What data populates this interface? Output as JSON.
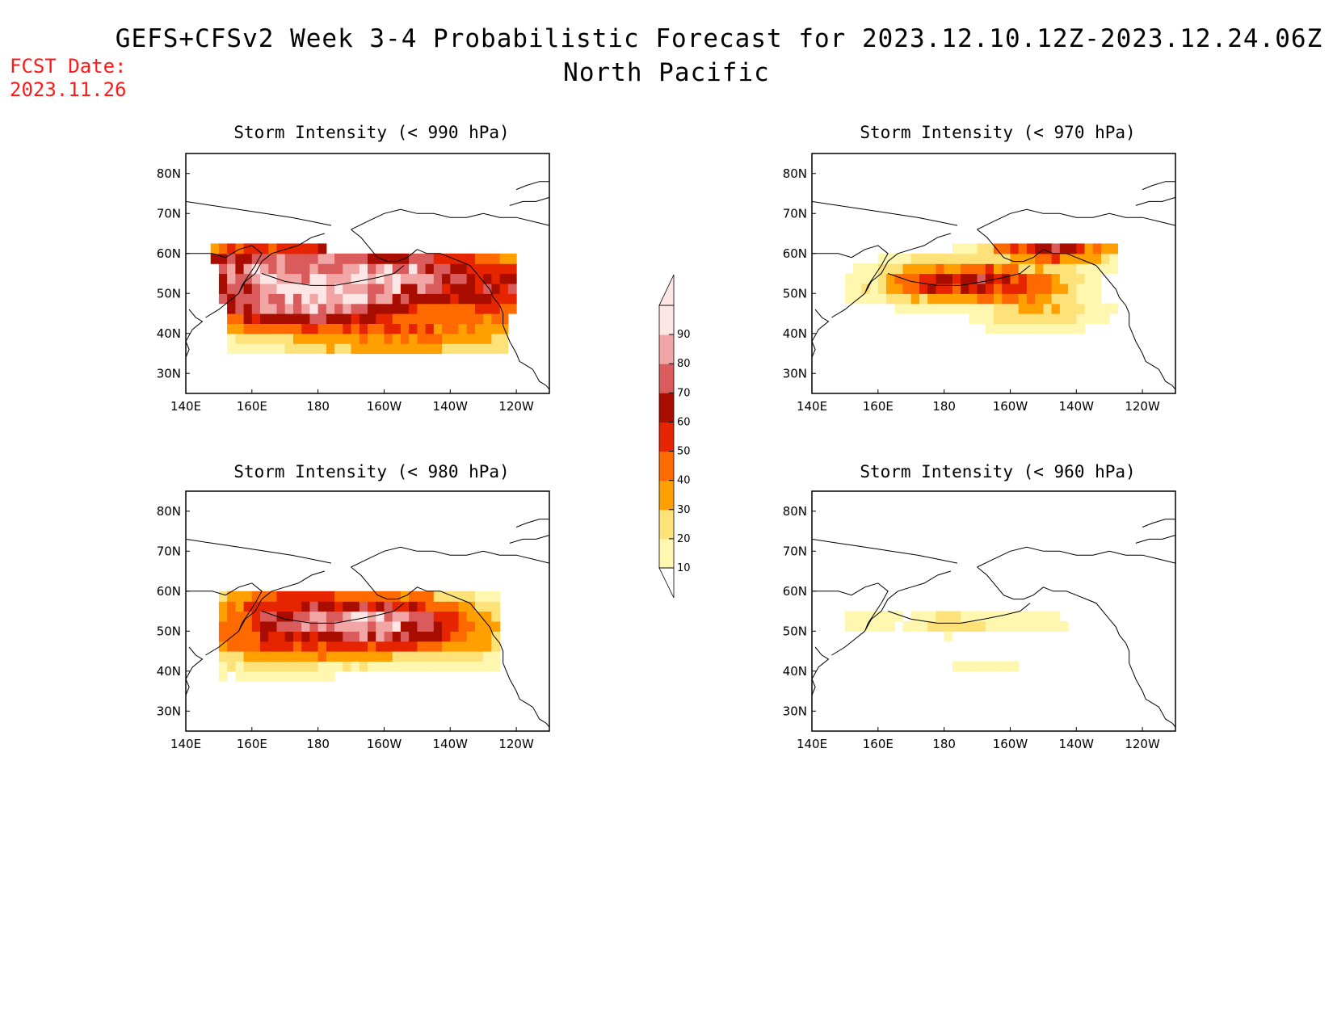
{
  "header": {
    "title_line1": "GEFS+CFSv2 Week 3-4 Probabilistic Forecast for 2023.12.10.12Z-2023.12.24.06Z",
    "title_line2": "North Pacific",
    "fcst_label": "FCST Date:",
    "fcst_date": "2023.11.26"
  },
  "axes": {
    "lon_ticks": [
      "140E",
      "160E",
      "180",
      "160W",
      "140W",
      "120W"
    ],
    "lat_ticks": [
      "80N",
      "70N",
      "60N",
      "50N",
      "40N",
      "30N"
    ],
    "lon_range": [
      140,
      250
    ],
    "lat_range": [
      25,
      85
    ]
  },
  "colorbar": {
    "levels": [
      "10",
      "20",
      "30",
      "40",
      "50",
      "60",
      "70",
      "80",
      "90"
    ],
    "colors": [
      "#fff7b0",
      "#fde27a",
      "#ff9f00",
      "#ff6a00",
      "#e62400",
      "#a80d00",
      "#d95b5b",
      "#f2a5a5",
      "#ffe6e6"
    ]
  },
  "chart_data": [
    {
      "type": "heatmap",
      "title": "Storm Intensity (< 990 hPa)",
      "xlim": [
        140,
        250
      ],
      "ylim": [
        25,
        85
      ],
      "field": {
        "centers": [
          [
            168,
            54,
            55
          ],
          [
            180,
            50,
            60
          ],
          [
            190,
            55,
            55
          ],
          [
            200,
            54,
            55
          ],
          [
            213,
            53,
            45
          ],
          [
            230,
            51,
            40
          ],
          [
            162,
            47,
            25
          ],
          [
            205,
            42,
            30
          ],
          [
            148,
            49,
            30
          ],
          [
            238,
            61,
            10
          ]
        ],
        "spread_lon": 95,
        "spread_lat": 22
      },
      "region": [
        [
          154,
          35
        ],
        [
          238,
          35
        ],
        [
          240,
          60
        ],
        [
          148,
          62
        ]
      ],
      "levels": [
        10,
        20,
        30,
        40,
        50,
        60,
        70,
        80,
        90
      ]
    },
    {
      "type": "heatmap",
      "title": "Storm Intensity (< 970 hPa)",
      "xlim": [
        140,
        250
      ],
      "ylim": [
        25,
        85
      ],
      "field": {
        "centers": [
          [
            180,
            53,
            38
          ],
          [
            190,
            53,
            42
          ],
          [
            200,
            52,
            35
          ],
          [
            208,
            46,
            20
          ],
          [
            164,
            52,
            15
          ],
          [
            212,
            62,
            40
          ]
        ],
        "spread_lon": 45,
        "spread_lat": 12
      },
      "region": [
        [
          148,
          40
        ],
        [
          232,
          40
        ],
        [
          232,
          62
        ],
        [
          150,
          62
        ]
      ],
      "levels": [
        10,
        20,
        30,
        40,
        50,
        60,
        70,
        80,
        90
      ]
    },
    {
      "type": "heatmap",
      "title": "Storm Intensity (< 980 hPa)",
      "xlim": [
        140,
        250
      ],
      "ylim": [
        25,
        85
      ],
      "field": {
        "centers": [
          [
            182,
            53,
            50
          ],
          [
            195,
            52,
            55
          ],
          [
            175,
            50,
            40
          ],
          [
            210,
            50,
            30
          ],
          [
            160,
            48,
            22
          ],
          [
            222,
            50,
            20
          ]
        ],
        "spread_lon": 80,
        "spread_lat": 18
      },
      "region": [
        [
          150,
          37
        ],
        [
          236,
          37
        ],
        [
          236,
          61
        ],
        [
          150,
          61
        ]
      ],
      "levels": [
        10,
        20,
        30,
        40,
        50,
        60,
        70,
        80,
        90
      ]
    },
    {
      "type": "heatmap",
      "title": "Storm Intensity (< 960 hPa)",
      "xlim": [
        140,
        250
      ],
      "ylim": [
        25,
        85
      ],
      "field": {
        "centers": [
          [
            182,
            52,
            18
          ],
          [
            192,
            52,
            14
          ],
          [
            208,
            52,
            12
          ],
          [
            157,
            53,
            11
          ],
          [
            192,
            41,
            11
          ]
        ],
        "spread_lon": 28,
        "spread_lat": 7
      },
      "region": [
        [
          150,
          40
        ],
        [
          230,
          40
        ],
        [
          230,
          60
        ],
        [
          150,
          60
        ]
      ],
      "levels": [
        10,
        20,
        30,
        40,
        50,
        60,
        70,
        80,
        90
      ]
    }
  ]
}
